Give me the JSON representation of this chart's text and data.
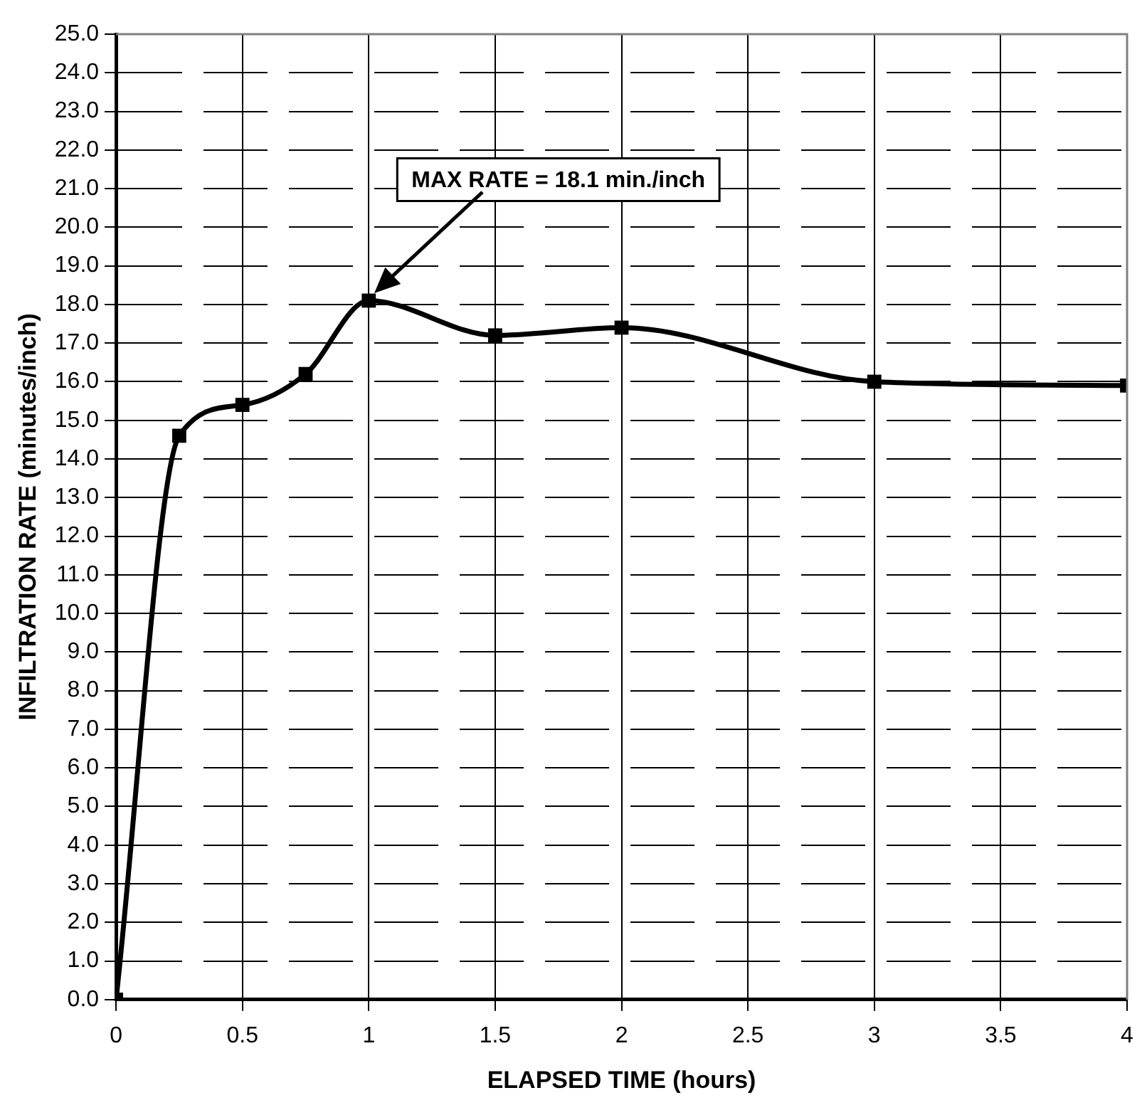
{
  "chart_data": {
    "type": "line",
    "xlabel": "ELAPSED TIME (hours)",
    "ylabel": "INFILTRATION RATE (minutes/inch)",
    "x": [
      0,
      0.25,
      0.5,
      0.75,
      1,
      1.5,
      2,
      3,
      4
    ],
    "series": [
      {
        "color": "#000000",
        "values": [
          0,
          14.6,
          15.4,
          16.2,
          18.1,
          17.2,
          17.4,
          16.0,
          15.9
        ]
      }
    ],
    "xlim": [
      0,
      4
    ],
    "xticks": [
      0,
      0.5,
      1,
      1.5,
      2,
      2.5,
      3,
      3.5,
      4
    ],
    "ylim": [
      0,
      25
    ],
    "yticks": [
      {
        "value": 0,
        "label": "0.0"
      },
      {
        "value": 1,
        "label": "1.0"
      },
      {
        "value": 2,
        "label": "2.0"
      },
      {
        "value": 3,
        "label": "3.0"
      },
      {
        "value": 4,
        "label": "4.0"
      },
      {
        "value": 5,
        "label": "5.0"
      },
      {
        "value": 6,
        "label": "6.0"
      },
      {
        "value": 7,
        "label": "7.0"
      },
      {
        "value": 8,
        "label": "8.0"
      },
      {
        "value": 9,
        "label": "9.0"
      },
      {
        "value": 10,
        "label": "10.0"
      },
      {
        "value": 11,
        "label": "11.0"
      },
      {
        "value": 12,
        "label": "12.0"
      },
      {
        "value": 13,
        "label": "13.0"
      },
      {
        "value": 14,
        "label": "14.0"
      },
      {
        "value": 15,
        "label": "15.0"
      },
      {
        "value": 16,
        "label": "16.0"
      },
      {
        "value": 17,
        "label": "17.0"
      },
      {
        "value": 18,
        "label": "18.0"
      },
      {
        "value": 19,
        "label": "19.0"
      },
      {
        "value": 20,
        "label": "20.0"
      },
      {
        "value": 21,
        "label": "21.0"
      },
      {
        "value": 22,
        "label": "22.0"
      },
      {
        "value": 23,
        "label": "23.0"
      },
      {
        "value": 24,
        "label": "24.0"
      },
      {
        "value": 25,
        "label": "25.0"
      }
    ],
    "grid": true,
    "legend": false,
    "marker": "square",
    "line_style": "solid",
    "annotations": [
      "MAX RATE = 18.1 min./inch"
    ]
  }
}
